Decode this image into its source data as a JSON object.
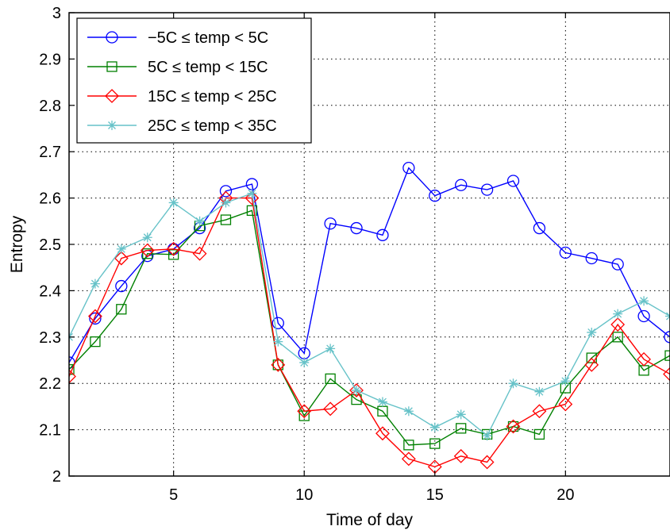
{
  "chart_data": {
    "type": "line",
    "title": "",
    "xlabel": "Time of day",
    "ylabel": "Entropy",
    "xlim": [
      1,
      24
    ],
    "ylim": [
      2,
      3
    ],
    "xticks": [
      5,
      10,
      15,
      20
    ],
    "yticks": [
      2,
      2.1,
      2.2,
      2.3,
      2.4,
      2.5,
      2.6,
      2.7,
      2.8,
      2.9,
      3
    ],
    "ytick_labels": [
      "2",
      "2.1",
      "2.2",
      "2.3",
      "2.4",
      "2.5",
      "2.6",
      "2.7",
      "2.8",
      "2.9",
      "3"
    ],
    "grid": true,
    "legend_position": "top-left",
    "x": [
      1,
      2,
      3,
      4,
      5,
      6,
      7,
      8,
      9,
      10,
      11,
      12,
      13,
      14,
      15,
      16,
      17,
      18,
      19,
      20,
      21,
      22,
      23,
      24
    ],
    "series": [
      {
        "name": "−5C ≤ temp < 5C",
        "color": "#0000ff",
        "marker": "circle",
        "values": [
          2.245,
          2.34,
          2.41,
          2.475,
          2.49,
          2.535,
          2.615,
          2.63,
          2.33,
          2.265,
          2.545,
          2.535,
          2.52,
          2.665,
          2.605,
          2.628,
          2.618,
          2.637,
          2.535,
          2.482,
          2.47,
          2.457,
          2.345,
          2.3
        ]
      },
      {
        "name": "5C ≤ temp < 15C",
        "color": "#008000",
        "marker": "square",
        "values": [
          2.23,
          2.29,
          2.36,
          2.48,
          2.478,
          2.54,
          2.553,
          2.573,
          2.24,
          2.13,
          2.21,
          2.165,
          2.14,
          2.067,
          2.07,
          2.103,
          2.09,
          2.107,
          2.09,
          2.19,
          2.255,
          2.3,
          2.228,
          2.26
        ]
      },
      {
        "name": "15C ≤ temp < 25C",
        "color": "#ff0000",
        "marker": "diamond",
        "values": [
          2.215,
          2.345,
          2.47,
          2.487,
          2.49,
          2.48,
          2.6,
          2.6,
          2.24,
          2.14,
          2.145,
          2.185,
          2.092,
          2.037,
          2.02,
          2.043,
          2.03,
          2.107,
          2.14,
          2.155,
          2.24,
          2.327,
          2.252,
          2.22
        ]
      },
      {
        "name": "25C ≤ temp < 35C",
        "color": "#66c2c8",
        "marker": "asterisk",
        "values": [
          2.3,
          2.415,
          2.49,
          2.515,
          2.59,
          2.55,
          2.59,
          2.61,
          2.29,
          2.245,
          2.275,
          2.185,
          2.16,
          2.14,
          2.105,
          2.133,
          2.087,
          2.2,
          2.182,
          2.205,
          2.31,
          2.35,
          2.378,
          2.345
        ]
      }
    ]
  }
}
